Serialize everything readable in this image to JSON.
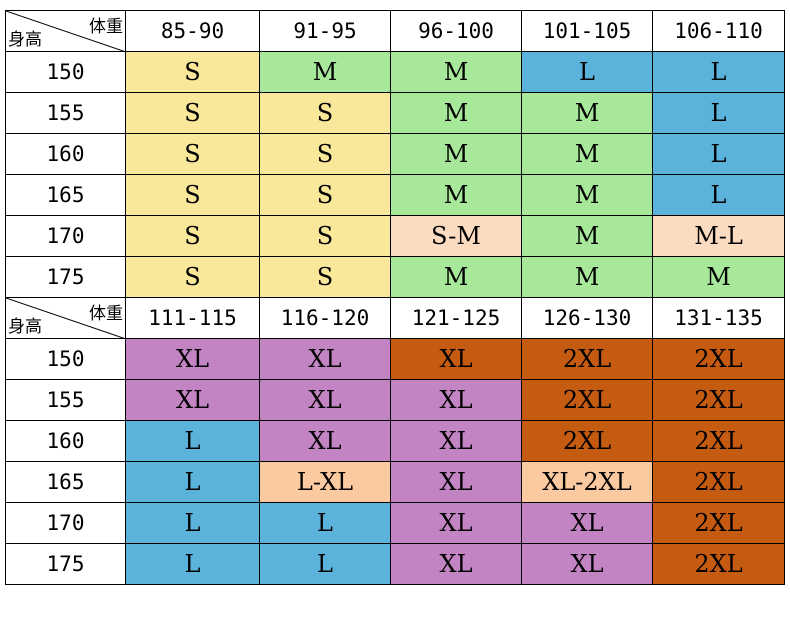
{
  "table": {
    "corner": {
      "weight_label": "体重",
      "height_label": "身高"
    },
    "sections": [
      {
        "weights": [
          "85-90",
          "91-95",
          "96-100",
          "101-105",
          "106-110"
        ],
        "rows": [
          {
            "height": "150",
            "sizes": [
              "S",
              "M",
              "M",
              "L",
              "L"
            ]
          },
          {
            "height": "155",
            "sizes": [
              "S",
              "S",
              "M",
              "M",
              "L"
            ]
          },
          {
            "height": "160",
            "sizes": [
              "S",
              "S",
              "M",
              "M",
              "L"
            ]
          },
          {
            "height": "165",
            "sizes": [
              "S",
              "S",
              "M",
              "M",
              "L"
            ]
          },
          {
            "height": "170",
            "sizes": [
              "S",
              "S",
              "S-M",
              "M",
              "M-L"
            ]
          },
          {
            "height": "175",
            "sizes": [
              "S",
              "S",
              "M",
              "M",
              "M"
            ]
          }
        ]
      },
      {
        "weights": [
          "111-115",
          "116-120",
          "121-125",
          "126-130",
          "131-135"
        ],
        "rows": [
          {
            "height": "150",
            "sizes": [
              "XL",
              "XL",
              "XL",
              "2XL",
              "2XL"
            ]
          },
          {
            "height": "155",
            "sizes": [
              "XL",
              "XL",
              "XL",
              "2XL",
              "2XL"
            ]
          },
          {
            "height": "160",
            "sizes": [
              "L",
              "XL",
              "XL",
              "2XL",
              "2XL"
            ]
          },
          {
            "height": "165",
            "sizes": [
              "L",
              "L-XL",
              "XL",
              "XL-2XL",
              "2XL"
            ]
          },
          {
            "height": "170",
            "sizes": [
              "L",
              "L",
              "XL",
              "XL",
              "2XL"
            ]
          },
          {
            "height": "175",
            "sizes": [
              "L",
              "L",
              "XL",
              "XL",
              "2XL"
            ]
          }
        ]
      }
    ],
    "row_colors": [
      [
        [
          "#f9e79a",
          "#a8e89a",
          "#a8e89a",
          "#5bb3dc",
          "#5bb3dc"
        ],
        [
          "#f9e79a",
          "#f9e79a",
          "#a8e89a",
          "#a8e89a",
          "#5bb3dc"
        ],
        [
          "#f9e79a",
          "#f9e79a",
          "#a8e89a",
          "#a8e89a",
          "#5bb3dc"
        ],
        [
          "#f9e79a",
          "#f9e79a",
          "#a8e89a",
          "#a8e89a",
          "#5bb3dc"
        ],
        [
          "#f9e79a",
          "#f9e79a",
          "#fcdcc0",
          "#a8e89a",
          "#fcdcc0"
        ],
        [
          "#f9e79a",
          "#f9e79a",
          "#a8e89a",
          "#a8e89a",
          "#a8e89a"
        ]
      ],
      [
        [
          "#c384c4",
          "#c384c4",
          "#c55a11",
          "#c55a11",
          "#c55a11"
        ],
        [
          "#c384c4",
          "#c384c4",
          "#c384c4",
          "#c55a11",
          "#c55a11"
        ],
        [
          "#5bb3dc",
          "#c384c4",
          "#c384c4",
          "#c55a11",
          "#c55a11"
        ],
        [
          "#5bb3dc",
          "#fccaa0",
          "#c384c4",
          "#fccaa0",
          "#c55a11"
        ],
        [
          "#5bb3dc",
          "#5bb3dc",
          "#c384c4",
          "#c384c4",
          "#c55a11"
        ],
        [
          "#5bb3dc",
          "#5bb3dc",
          "#c384c4",
          "#c384c4",
          "#c55a11"
        ]
      ]
    ]
  }
}
